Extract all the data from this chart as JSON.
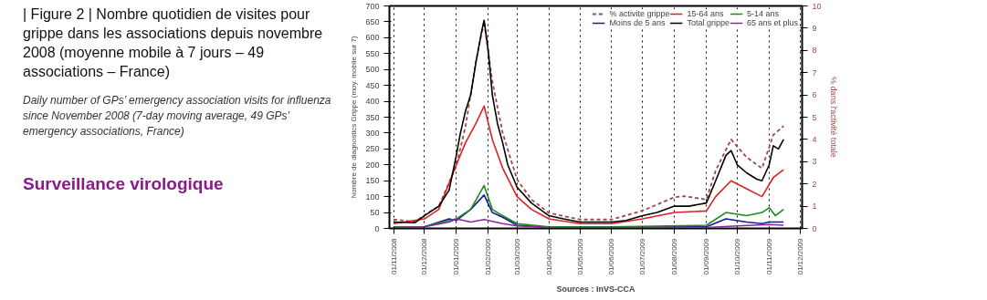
{
  "chart_data": {
    "type": "line",
    "title": "| Figure 2 | Nombre quotidien de visites pour grippe dans les associations depuis novembre 2008 (moyenne mobile à 7 jours – 49 associations – France)",
    "subtitle": "Daily number of GPs’ emergency association visits for influenza since November 2008 (7-day moving average, 49 GPs’ emergency associations, France)",
    "ylabel": "Nombre de diagnostics Grippe (moy. mobile sur 7)",
    "y2label": "% dans l'activité totale",
    "annotations": [
      "Sources : InVS-CCA",
      "Surveillance virologique"
    ],
    "xlim": [
      "2008-10-28",
      "2009-12-03"
    ],
    "xticks": [
      {
        "value": "2008-11-01",
        "label": "01/11/2008"
      },
      {
        "value": "2008-12-01",
        "label": "01/12/2008"
      },
      {
        "value": "2009-01-01",
        "label": "01/01/2009"
      },
      {
        "value": "2009-02-01",
        "label": "01/02/2009"
      },
      {
        "value": "2009-03-01",
        "label": "01/03/2009"
      },
      {
        "value": "2009-04-01",
        "label": "01/04/2009"
      },
      {
        "value": "2009-05-01",
        "label": "01/05/2009"
      },
      {
        "value": "2009-06-01",
        "label": "01/06/2009"
      },
      {
        "value": "2009-07-01",
        "label": "01/07/2009"
      },
      {
        "value": "2009-08-01",
        "label": "01/08/2009"
      },
      {
        "value": "2009-09-01",
        "label": "01/09/2009"
      },
      {
        "value": "2009-10-01",
        "label": "01/10/2009"
      },
      {
        "value": "2009-11-01",
        "label": "01/11/2009"
      },
      {
        "value": "2009-12-01",
        "label": "01/12/2009"
      }
    ],
    "ylim": [
      0,
      700
    ],
    "yticks": [
      0,
      50,
      100,
      150,
      200,
      250,
      300,
      350,
      400,
      450,
      500,
      550,
      600,
      650,
      700
    ],
    "y2lim": [
      0,
      10
    ],
    "y2ticks": [
      0,
      1,
      2,
      3,
      4,
      5,
      6,
      7,
      8,
      9,
      10
    ],
    "grid": "x",
    "legend": "top right",
    "line_style": "solid",
    "series": [
      {
        "name": "% activite grippe",
        "color": "#a04848",
        "axis": "y2",
        "line_style": "dashed",
        "x": [
          "2008-11-01",
          "2008-11-22",
          "2008-12-01",
          "2008-12-15",
          "2009-01-01",
          "2009-01-10",
          "2009-01-20",
          "2009-01-28",
          "2009-02-05",
          "2009-02-15",
          "2009-03-01",
          "2009-03-15",
          "2009-04-01",
          "2009-05-01",
          "2009-06-01",
          "2009-07-01",
          "2009-08-01",
          "2009-08-10",
          "2009-09-01",
          "2009-09-10",
          "2009-09-25",
          "2009-10-10",
          "2009-10-25",
          "2009-11-05",
          "2009-11-15"
        ],
        "values": [
          0.4,
          0.3,
          0.6,
          1.0,
          2.8,
          4.6,
          7.5,
          9.3,
          6.6,
          4.3,
          2.2,
          1.3,
          0.7,
          0.4,
          0.4,
          0.8,
          1.4,
          1.45,
          1.3,
          2.6,
          4.0,
          3.2,
          2.7,
          4.2,
          4.6
        ]
      },
      {
        "name": "Moins de 5 ans",
        "color": "#1a1aa0",
        "x": [
          "2008-11-01",
          "2008-12-01",
          "2008-12-25",
          "2009-01-01",
          "2009-01-15",
          "2009-01-28",
          "2009-02-05",
          "2009-02-15",
          "2009-03-01",
          "2009-04-01",
          "2009-09-01",
          "2009-09-20",
          "2009-10-10",
          "2009-10-25",
          "2009-11-01",
          "2009-11-15"
        ],
        "values": [
          3,
          5,
          30,
          25,
          60,
          105,
          50,
          35,
          10,
          3,
          5,
          30,
          20,
          15,
          20,
          20
        ]
      },
      {
        "name": "15-64 ans",
        "color": "#e02020",
        "x": [
          "2008-11-01",
          "2008-12-01",
          "2008-12-15",
          "2009-01-01",
          "2009-01-10",
          "2009-01-20",
          "2009-01-28",
          "2009-02-05",
          "2009-02-15",
          "2009-03-01",
          "2009-03-15",
          "2009-04-01",
          "2009-05-01",
          "2009-06-01",
          "2009-07-01",
          "2009-08-01",
          "2009-09-01",
          "2009-09-10",
          "2009-09-25",
          "2009-10-10",
          "2009-10-25",
          "2009-11-05",
          "2009-11-15"
        ],
        "values": [
          15,
          30,
          60,
          200,
          270,
          330,
          385,
          280,
          190,
          100,
          60,
          30,
          15,
          15,
          30,
          50,
          55,
          100,
          150,
          125,
          100,
          160,
          185
        ]
      },
      {
        "name": "Total grippe",
        "color": "#000000",
        "x": [
          "2008-11-01",
          "2008-11-22",
          "2008-12-01",
          "2008-12-15",
          "2008-12-25",
          "2009-01-01",
          "2009-01-05",
          "2009-01-10",
          "2009-01-15",
          "2009-01-20",
          "2009-01-25",
          "2009-01-28",
          "2009-02-01",
          "2009-02-05",
          "2009-02-10",
          "2009-02-15",
          "2009-02-20",
          "2009-03-01",
          "2009-03-15",
          "2009-04-01",
          "2009-04-15",
          "2009-05-01",
          "2009-06-01",
          "2009-06-15",
          "2009-07-01",
          "2009-07-15",
          "2009-08-01",
          "2009-08-15",
          "2009-09-01",
          "2009-09-10",
          "2009-09-20",
          "2009-09-25",
          "2009-10-01",
          "2009-10-10",
          "2009-10-20",
          "2009-10-25",
          "2009-11-01",
          "2009-11-05",
          "2009-11-10",
          "2009-11-15"
        ],
        "values": [
          20,
          18,
          40,
          70,
          120,
          230,
          300,
          370,
          420,
          520,
          610,
          655,
          560,
          420,
          330,
          270,
          200,
          130,
          80,
          40,
          30,
          20,
          20,
          25,
          40,
          50,
          70,
          70,
          80,
          150,
          230,
          245,
          200,
          175,
          155,
          150,
          200,
          260,
          250,
          280
        ]
      },
      {
        "name": "5-14 ans",
        "color": "#1a8a1a",
        "x": [
          "2008-11-01",
          "2008-12-01",
          "2008-12-25",
          "2009-01-01",
          "2009-01-15",
          "2009-01-28",
          "2009-02-05",
          "2009-02-15",
          "2009-03-01",
          "2009-04-01",
          "2009-06-01",
          "2009-09-01",
          "2009-09-20",
          "2009-10-10",
          "2009-10-25",
          "2009-11-01",
          "2009-11-07",
          "2009-11-15"
        ],
        "values": [
          5,
          5,
          25,
          30,
          60,
          135,
          60,
          40,
          15,
          5,
          5,
          10,
          50,
          40,
          50,
          65,
          40,
          60
        ]
      },
      {
        "name": "65 ans et plus",
        "color": "#8a2a9a",
        "x": [
          "2008-11-01",
          "2008-12-01",
          "2008-12-25",
          "2009-01-01",
          "2009-01-15",
          "2009-01-28",
          "2009-02-15",
          "2009-03-01",
          "2009-04-01",
          "2009-09-01",
          "2009-10-01",
          "2009-11-01",
          "2009-11-15"
        ],
        "values": [
          3,
          5,
          20,
          30,
          20,
          28,
          15,
          8,
          3,
          3,
          8,
          12,
          10
        ]
      }
    ]
  }
}
